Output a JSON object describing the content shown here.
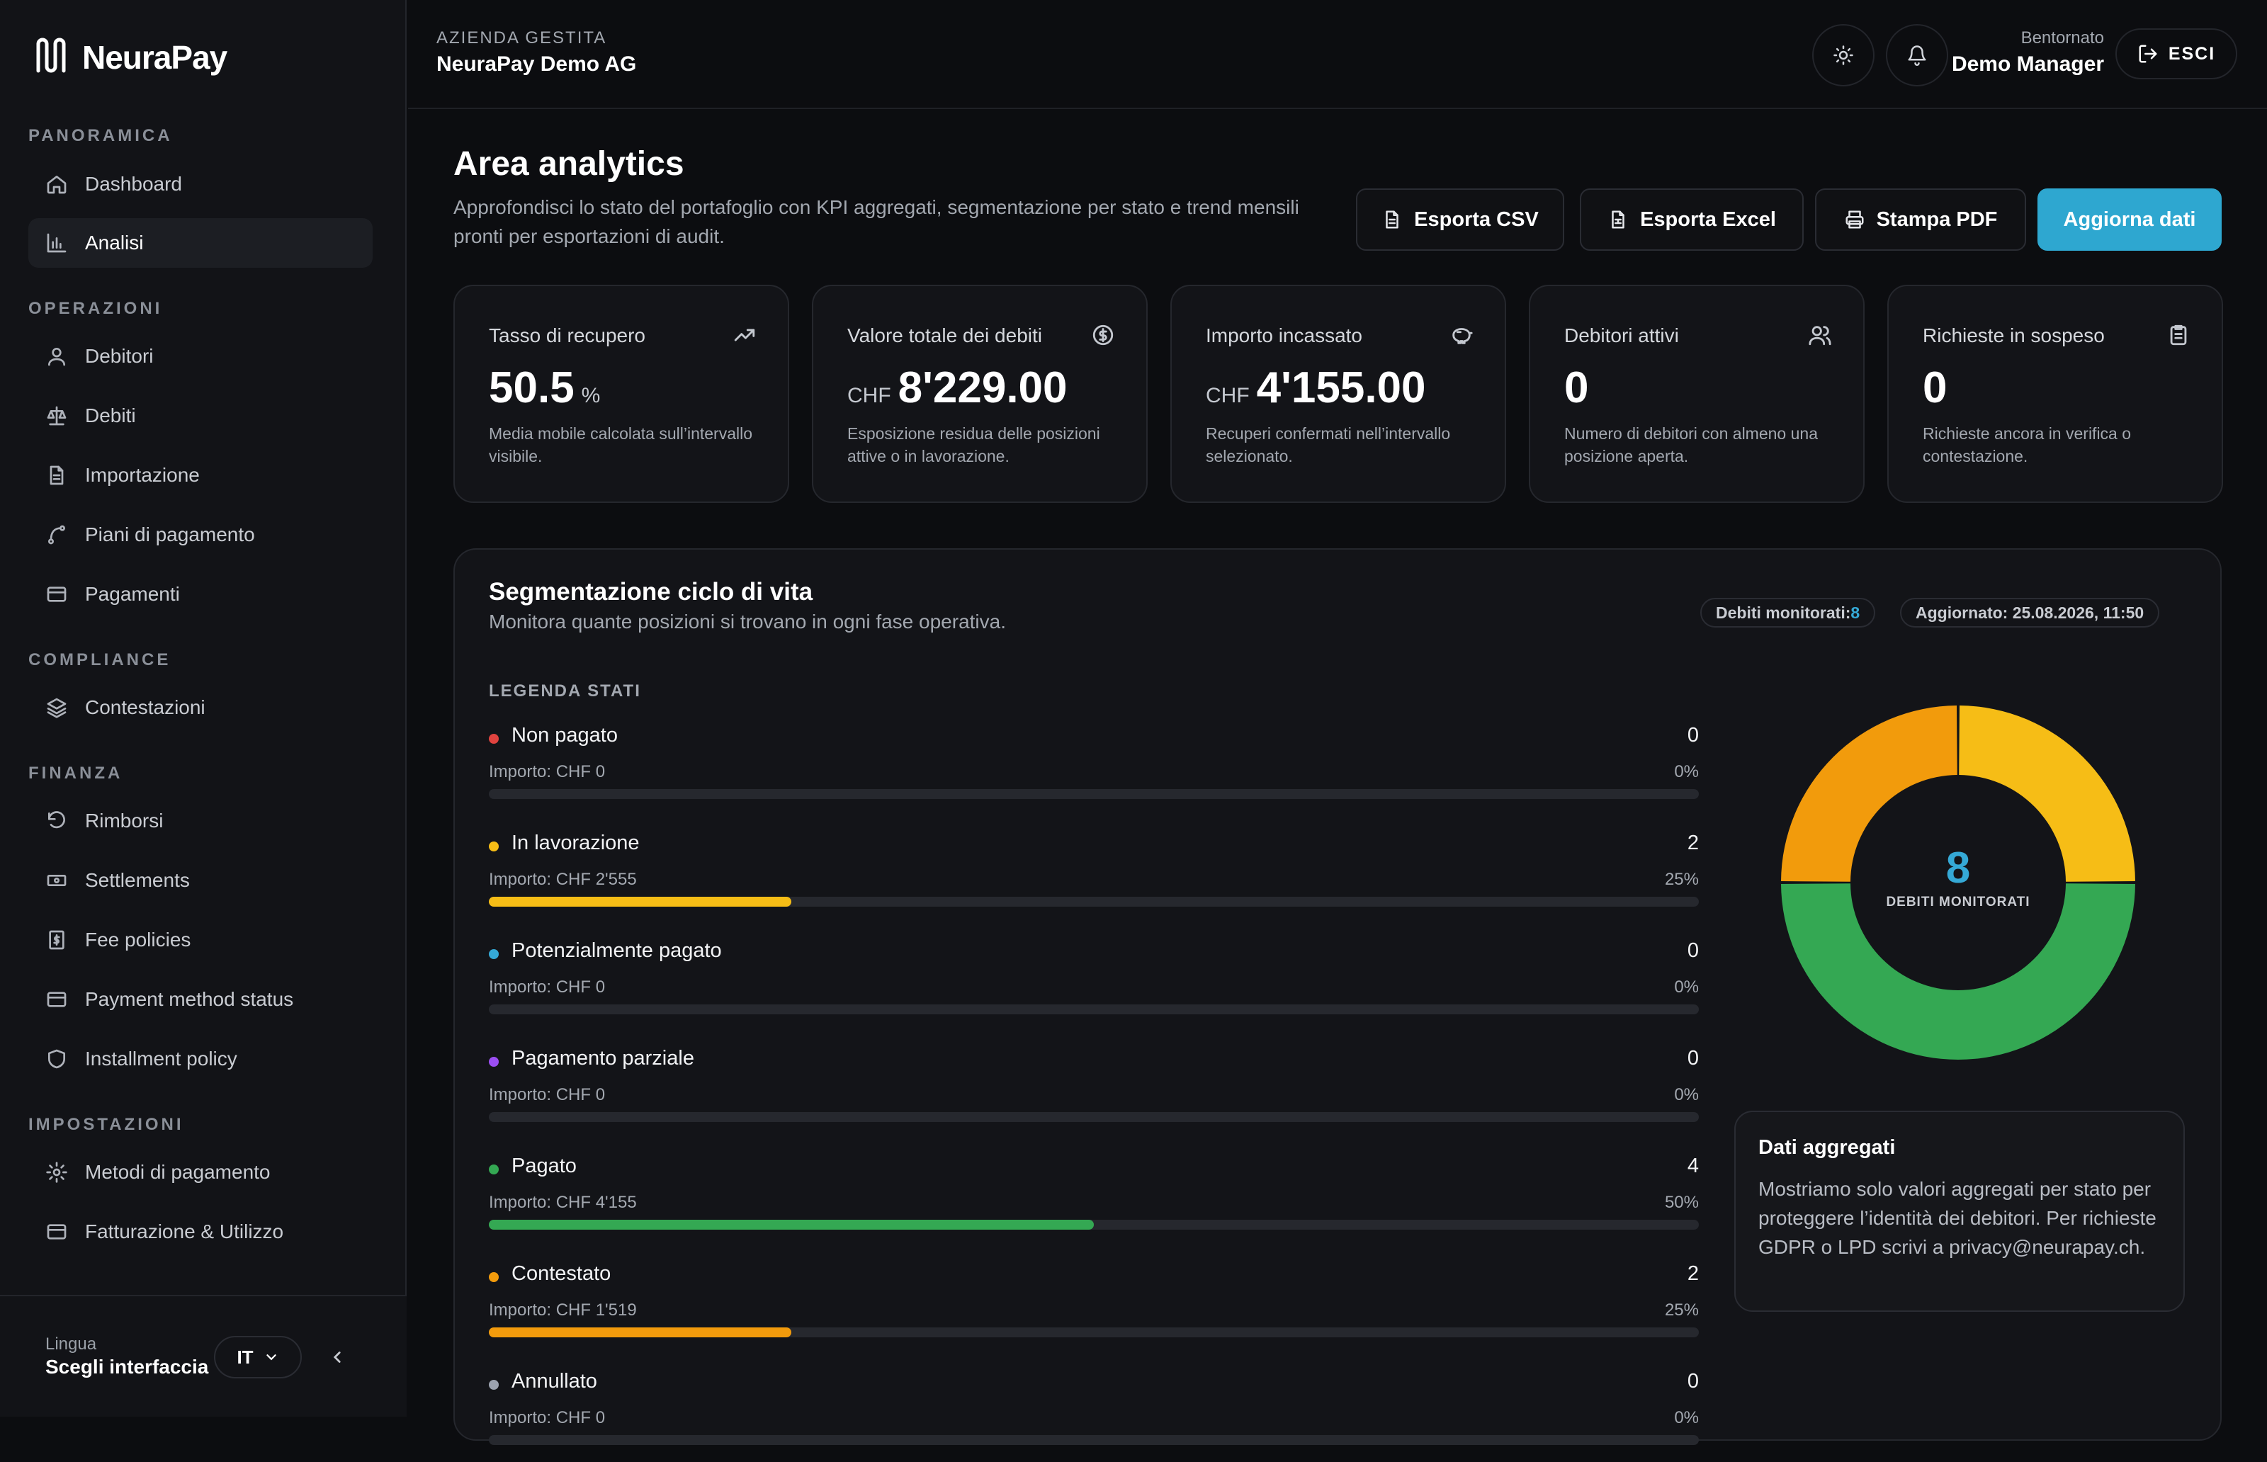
{
  "brand": {
    "name": "NeuraPay"
  },
  "sidebar": {
    "sections": [
      {
        "title": "PANORAMICA"
      },
      {
        "title": "OPERAZIONI"
      },
      {
        "title": "COMPLIANCE"
      },
      {
        "title": "FINANZA"
      },
      {
        "title": "IMPOSTAZIONI"
      }
    ],
    "items": [
      {
        "label": "Dashboard",
        "icon": "home-icon"
      },
      {
        "label": "Analisi",
        "icon": "bar-chart-icon",
        "active": true
      },
      {
        "label": "Debitori",
        "icon": "user-icon"
      },
      {
        "label": "Debiti",
        "icon": "scale-icon"
      },
      {
        "label": "Importazione",
        "icon": "file-icon"
      },
      {
        "label": "Piani di pagamento",
        "icon": "route-icon"
      },
      {
        "label": "Pagamenti",
        "icon": "card-icon"
      },
      {
        "label": "Contestazioni",
        "icon": "layers-icon"
      },
      {
        "label": "Rimborsi",
        "icon": "undo-icon"
      },
      {
        "label": "Settlements",
        "icon": "banknote-icon"
      },
      {
        "label": "Fee policies",
        "icon": "receipt-icon"
      },
      {
        "label": "Payment method status",
        "icon": "card-icon"
      },
      {
        "label": "Installment policy",
        "icon": "shield-icon"
      },
      {
        "label": "Metodi di pagamento",
        "icon": "gear-icon"
      },
      {
        "label": "Fatturazione & Utilizzo",
        "icon": "card-icon"
      }
    ],
    "footer": {
      "lang_label": "Lingua",
      "lang_value": "Scegli interfaccia",
      "lang_code": "IT"
    }
  },
  "header": {
    "company_label": "AZIENDA GESTITA",
    "company_name": "NeuraPay Demo AG",
    "welcome": "Bentornato",
    "user_name": "Demo Manager",
    "logout": "ESCI"
  },
  "page": {
    "title": "Area analytics",
    "subtitle": "Approfondisci lo stato del portafoglio con KPI aggregati, segmentazione per stato e trend mensili pronti per esportazioni di audit.",
    "actions": {
      "csv": "Esporta CSV",
      "excel": "Esporta Excel",
      "pdf": "Stampa PDF",
      "refresh": "Aggiorna dati"
    }
  },
  "kpis": [
    {
      "title": "Tasso di recupero",
      "prefix": "",
      "value": "50.5",
      "suffix": "%",
      "desc": "Media mobile calcolata sull’intervallo visibile.",
      "icon": "trending-up-icon"
    },
    {
      "title": "Valore totale dei debiti",
      "prefix": "CHF",
      "value": "8'229.00",
      "suffix": "",
      "desc": "Esposizione residua delle posizioni attive o in lavorazione.",
      "icon": "dollar-circle-icon"
    },
    {
      "title": "Importo incassato",
      "prefix": "CHF",
      "value": "4'155.00",
      "suffix": "",
      "desc": "Recuperi confermati nell’intervallo selezionato.",
      "icon": "piggy-bank-icon"
    },
    {
      "title": "Debitori attivi",
      "prefix": "",
      "value": "0",
      "suffix": "",
      "desc": "Numero di debitori con almeno una posizione aperta.",
      "icon": "users-icon"
    },
    {
      "title": "Richieste in sospeso",
      "prefix": "",
      "value": "0",
      "suffix": "",
      "desc": "Richieste ancora in verifica o contestazione.",
      "icon": "clipboard-icon"
    }
  ],
  "segmentation": {
    "title": "Segmentazione ciclo di vita",
    "subtitle": "Monitora quante posizioni si trovano in ogni fase operativa.",
    "chip_monitored_label": "Debiti monitorati:",
    "chip_monitored_value": "8",
    "chip_updated": "Aggiornato: 25.08.2026, 11:50",
    "legend_title": "LEGENDA STATI",
    "statuses": [
      {
        "name": "Non pagato",
        "count": "0",
        "amount": "Importo: CHF 0",
        "pct": "0%",
        "fraction": 0,
        "color": "#e0433f"
      },
      {
        "name": "In lavorazione",
        "count": "2",
        "amount": "Importo: CHF 2'555",
        "pct": "25%",
        "fraction": 0.25,
        "color": "#f6bd16"
      },
      {
        "name": "Potenzialmente pagato",
        "count": "0",
        "amount": "Importo: CHF 0",
        "pct": "0%",
        "fraction": 0,
        "color": "#35a9d6"
      },
      {
        "name": "Pagamento parziale",
        "count": "0",
        "amount": "Importo: CHF 0",
        "pct": "0%",
        "fraction": 0,
        "color": "#9b4ef2"
      },
      {
        "name": "Pagato",
        "count": "4",
        "amount": "Importo: CHF 4'155",
        "pct": "50%",
        "fraction": 0.5,
        "color": "#34a853"
      },
      {
        "name": "Contestato",
        "count": "2",
        "amount": "Importo: CHF 1'519",
        "pct": "25%",
        "fraction": 0.25,
        "color": "#f29b0c"
      },
      {
        "name": "Annullato",
        "count": "0",
        "amount": "Importo: CHF 0",
        "pct": "0%",
        "fraction": 0,
        "color": "#9ca3af"
      }
    ],
    "donut_total": "8",
    "donut_label": "DEBITI MONITORATI",
    "info_title": "Dati aggregati",
    "info_text": "Mostriamo solo valori aggregati per stato per proteggere l’identità dei debitori. Per richieste GDPR o LPD scrivi a privacy@neurapay.ch."
  },
  "colors": {
    "accent": "#2ea7d0"
  }
}
